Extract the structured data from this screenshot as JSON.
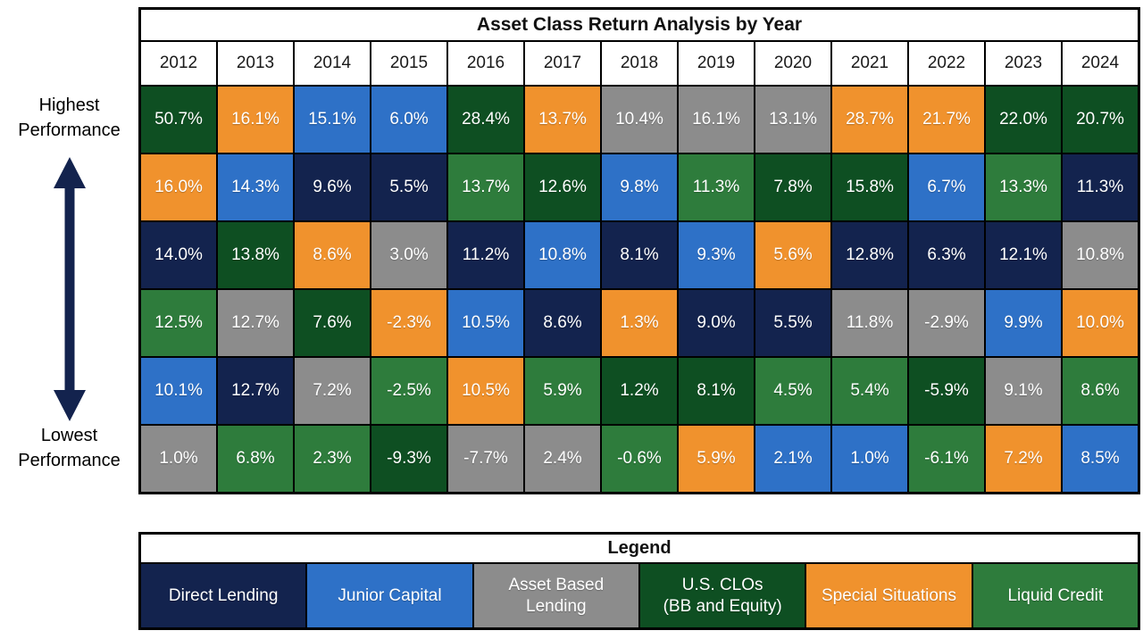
{
  "title": "Asset Class Return Analysis by Year",
  "side": {
    "highest_label": "Highest\nPerformance",
    "lowest_label": "Lowest\nPerformance",
    "arrow_color": "#13234E"
  },
  "legend": {
    "title": "Legend",
    "items": [
      {
        "key": "DL",
        "label": "Direct Lending",
        "color": "#13234E"
      },
      {
        "key": "JC",
        "label": "Junior Capital",
        "color": "#2E71C7"
      },
      {
        "key": "ABL",
        "label": "Asset Based\nLending",
        "color": "#8C8C8C"
      },
      {
        "key": "CLO",
        "label": "U.S. CLOs\n(BB and Equity)",
        "color": "#0E4F22"
      },
      {
        "key": "SS",
        "label": "Special Situations",
        "color": "#F0922D"
      },
      {
        "key": "LC",
        "label": "Liquid Credit",
        "color": "#2E7C3C"
      }
    ]
  },
  "chart_data": {
    "type": "heatmap",
    "title": "Asset Class Return Analysis by Year",
    "description": "Quilt chart of asset class returns; rows ranked from highest to lowest performance within each year",
    "columns": [
      "2012",
      "2013",
      "2014",
      "2015",
      "2016",
      "2017",
      "2018",
      "2019",
      "2020",
      "2021",
      "2022",
      "2023",
      "2024"
    ],
    "values": [
      [
        "50.7%",
        "16.1%",
        "15.1%",
        "6.0%",
        "28.4%",
        "13.7%",
        "10.4%",
        "16.1%",
        "13.1%",
        "28.7%",
        "21.7%",
        "22.0%",
        "20.7%"
      ],
      [
        "16.0%",
        "14.3%",
        "9.6%",
        "5.5%",
        "13.7%",
        "12.6%",
        "9.8%",
        "11.3%",
        "7.8%",
        "15.8%",
        "6.7%",
        "13.3%",
        "11.3%"
      ],
      [
        "14.0%",
        "13.8%",
        "8.6%",
        "3.0%",
        "11.2%",
        "10.8%",
        "8.1%",
        "9.3%",
        "5.6%",
        "12.8%",
        "6.3%",
        "12.1%",
        "10.8%"
      ],
      [
        "12.5%",
        "12.7%",
        "7.6%",
        "-2.3%",
        "10.5%",
        "8.6%",
        "1.3%",
        "9.0%",
        "5.5%",
        "11.8%",
        "-2.9%",
        "9.9%",
        "10.0%"
      ],
      [
        "10.1%",
        "12.7%",
        "7.2%",
        "-2.5%",
        "10.5%",
        "5.9%",
        "1.2%",
        "8.1%",
        "4.5%",
        "5.4%",
        "-5.9%",
        "9.1%",
        "8.6%"
      ],
      [
        "1.0%",
        "6.8%",
        "2.3%",
        "-9.3%",
        "-7.7%",
        "2.4%",
        "-0.6%",
        "5.9%",
        "2.1%",
        "1.0%",
        "-6.1%",
        "7.2%",
        "8.5%"
      ]
    ],
    "assets": [
      [
        "CLO",
        "SS",
        "JC",
        "JC",
        "CLO",
        "SS",
        "ABL",
        "ABL",
        "ABL",
        "SS",
        "SS",
        "CLO",
        "CLO"
      ],
      [
        "SS",
        "JC",
        "DL",
        "DL",
        "LC",
        "CLO",
        "JC",
        "LC",
        "CLO",
        "CLO",
        "JC",
        "LC",
        "DL"
      ],
      [
        "DL",
        "CLO",
        "SS",
        "ABL",
        "DL",
        "JC",
        "DL",
        "JC",
        "SS",
        "DL",
        "DL",
        "DL",
        "ABL"
      ],
      [
        "LC",
        "ABL",
        "CLO",
        "SS",
        "JC",
        "DL",
        "SS",
        "DL",
        "DL",
        "ABL",
        "ABL",
        "JC",
        "SS"
      ],
      [
        "JC",
        "DL",
        "ABL",
        "LC",
        "SS",
        "LC",
        "CLO",
        "CLO",
        "LC",
        "LC",
        "CLO",
        "ABL",
        "LC"
      ],
      [
        "ABL",
        "LC",
        "LC",
        "CLO",
        "ABL",
        "ABL",
        "LC",
        "SS",
        "JC",
        "JC",
        "LC",
        "SS",
        "JC"
      ]
    ]
  }
}
